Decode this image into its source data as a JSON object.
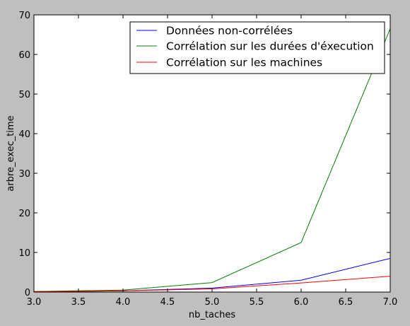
{
  "chart_data": {
    "type": "line",
    "title": "",
    "xlabel": "nb_taches",
    "ylabel": "arbre_exec_time",
    "xlim": [
      3.0,
      7.0
    ],
    "ylim": [
      0,
      70
    ],
    "xticks": [
      "3.0",
      "3.5",
      "4.0",
      "4.5",
      "5.0",
      "5.5",
      "6.0",
      "6.5",
      "7.0"
    ],
    "yticks": [
      "0",
      "10",
      "20",
      "30",
      "40",
      "50",
      "60",
      "70"
    ],
    "grid": false,
    "legend_position": "top-right",
    "x": [
      3,
      4,
      5,
      6,
      7
    ],
    "series": [
      {
        "name": "Données non-corrélées",
        "color": "#0000ff",
        "values": [
          0.1,
          0.3,
          1.0,
          3.0,
          8.5
        ]
      },
      {
        "name": "Corrélation sur les durées d'éxecution",
        "color": "#008000",
        "values": [
          0.15,
          0.5,
          2.4,
          12.5,
          66.5
        ]
      },
      {
        "name": "Corrélation sur les machines",
        "color": "#ff0000",
        "values": [
          0.1,
          0.3,
          0.8,
          2.3,
          4.0
        ]
      }
    ]
  }
}
